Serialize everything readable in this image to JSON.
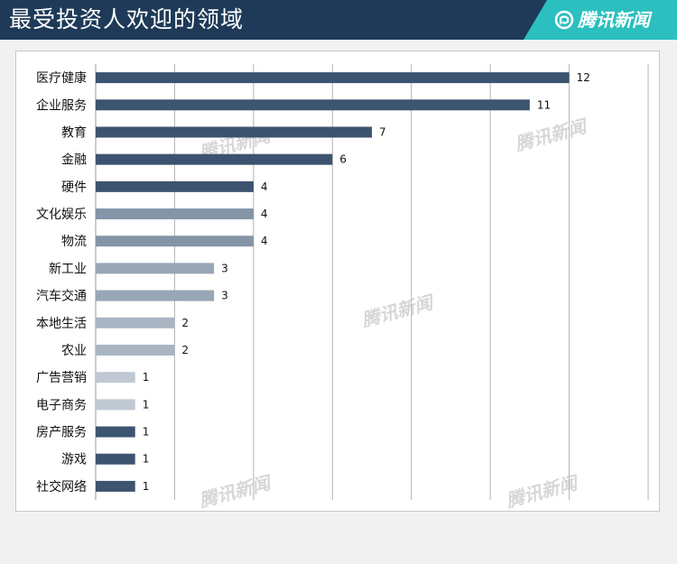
{
  "header": {
    "title": "最受投资人欢迎的领域"
  },
  "brand": {
    "name": "腾讯新闻",
    "logo_icon": "tencent-news-logo-icon"
  },
  "watermark": "腾讯新闻",
  "chart_data": {
    "type": "bar",
    "orientation": "horizontal",
    "title": "最受投资人欢迎的领域",
    "xlabel": "",
    "ylabel": "",
    "xlim": [
      0,
      14
    ],
    "grid": true,
    "categories": [
      "医疗健康",
      "企业服务",
      "教育",
      "金融",
      "硬件",
      "文化娱乐",
      "物流",
      "新工业",
      "汽车交通",
      "本地生活",
      "农业",
      "广告营销",
      "电子商务",
      "房产服务",
      "游戏",
      "社交网络"
    ],
    "values": [
      12,
      11,
      7,
      6,
      4,
      4,
      4,
      3,
      3,
      2,
      2,
      1,
      1,
      1,
      1,
      1
    ],
    "colors": [
      "#3c5470",
      "#3c5470",
      "#3c5470",
      "#3c5470",
      "#3c5470",
      "#8595a8",
      "#8595a8",
      "#98a6b6",
      "#98a6b6",
      "#a9b5c3",
      "#a9b5c3",
      "#c0c9d3",
      "#c0c9d3",
      "#3c5470",
      "#3c5470",
      "#3c5470"
    ]
  }
}
